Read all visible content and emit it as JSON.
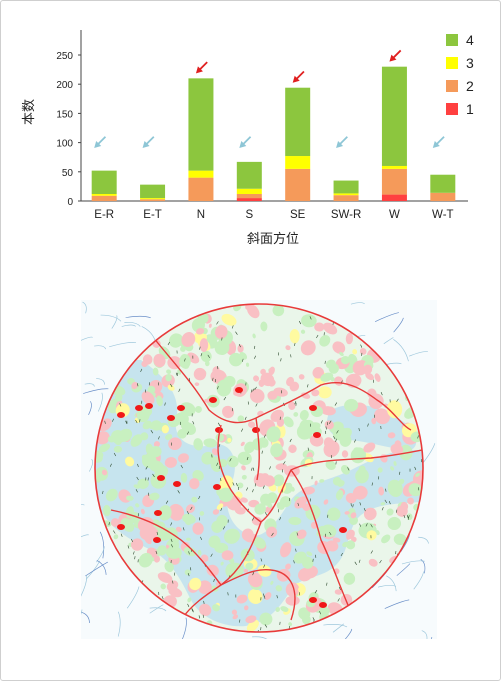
{
  "chart_data": {
    "type": "bar",
    "stacked": true,
    "xlabel": "斜面方位",
    "ylabel": "本数",
    "ylim": [
      0,
      250
    ],
    "yticks": [
      0,
      50,
      100,
      150,
      200,
      250
    ],
    "categories": [
      "E-R",
      "E-T",
      "N",
      "S",
      "SE",
      "SW-R",
      "W",
      "W-T"
    ],
    "series": [
      {
        "name": "1",
        "color": "#ff4040",
        "values": [
          0,
          0,
          0,
          5,
          0,
          0,
          11,
          0
        ]
      },
      {
        "name": "2",
        "color": "#f59a5a",
        "values": [
          9,
          3,
          40,
          7,
          55,
          10,
          44,
          14
        ]
      },
      {
        "name": "3",
        "color": "#ffff00",
        "values": [
          3,
          2,
          12,
          9,
          22,
          3,
          5,
          0
        ]
      },
      {
        "name": "4",
        "color": "#8cc63e",
        "values": [
          40,
          23,
          158,
          46,
          117,
          22,
          170,
          31
        ]
      }
    ],
    "legend": {
      "position": "top-right",
      "order": [
        "4",
        "3",
        "2",
        "1"
      ]
    },
    "arrows": {
      "red_on": [
        "N",
        "SE",
        "W"
      ],
      "blue_on": [
        "E-R",
        "E-T",
        "S",
        "SW-R",
        "W-T"
      ],
      "red_color": "#e02020",
      "blue_color": "#8ec6d6"
    },
    "grid": false
  },
  "map": {
    "boundary_color": "#e83a3a",
    "water_color": "#bfe0ee",
    "colors": {
      "class4": "#c8f0c0",
      "class3": "#fffaa0",
      "class2": "#f9c0c4",
      "class1": "#f01818"
    }
  }
}
